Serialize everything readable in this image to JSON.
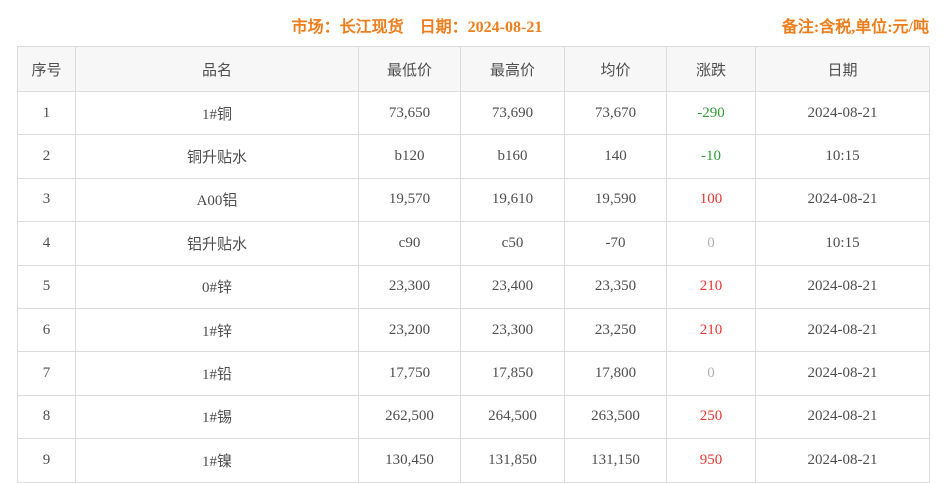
{
  "header": {
    "title": "市场：长江现货　日期：2024-08-21",
    "remark": "备注:含税,单位:元/吨"
  },
  "colors": {
    "accent_orange": "#ef7d1a",
    "rise_red": "#e83632",
    "fall_green": "#2e9b35",
    "zero_gray": "#b0b0b0",
    "header_bg": "#f7f7f7",
    "border_gray": "#dcdcdc",
    "text_gray": "#4d4d4d"
  },
  "table": {
    "columns": [
      "序号",
      "品名",
      "最低价",
      "最高价",
      "均价",
      "涨跌",
      "日期"
    ],
    "rows": [
      {
        "no": "1",
        "name": "1#铜",
        "low": "73,650",
        "high": "73,690",
        "avg": "73,670",
        "change": "-290",
        "change_type": "fall",
        "date": "2024-08-21"
      },
      {
        "no": "2",
        "name": "铜升贴水",
        "low": "b120",
        "high": "b160",
        "avg": "140",
        "change": "-10",
        "change_type": "fall",
        "date": "10:15"
      },
      {
        "no": "3",
        "name": "A00铝",
        "low": "19,570",
        "high": "19,610",
        "avg": "19,590",
        "change": "100",
        "change_type": "rise",
        "date": "2024-08-21"
      },
      {
        "no": "4",
        "name": "铝升贴水",
        "low": "c90",
        "high": "c50",
        "avg": "-70",
        "change": "0",
        "change_type": "zero",
        "date": "10:15"
      },
      {
        "no": "5",
        "name": "0#锌",
        "low": "23,300",
        "high": "23,400",
        "avg": "23,350",
        "change": "210",
        "change_type": "rise",
        "date": "2024-08-21"
      },
      {
        "no": "6",
        "name": "1#锌",
        "low": "23,200",
        "high": "23,300",
        "avg": "23,250",
        "change": "210",
        "change_type": "rise",
        "date": "2024-08-21"
      },
      {
        "no": "7",
        "name": "1#铅",
        "low": "17,750",
        "high": "17,850",
        "avg": "17,800",
        "change": "0",
        "change_type": "zero",
        "date": "2024-08-21"
      },
      {
        "no": "8",
        "name": "1#锡",
        "low": "262,500",
        "high": "264,500",
        "avg": "263,500",
        "change": "250",
        "change_type": "rise",
        "date": "2024-08-21"
      },
      {
        "no": "9",
        "name": "1#镍",
        "low": "130,450",
        "high": "131,850",
        "avg": "131,150",
        "change": "950",
        "change_type": "rise",
        "date": "2024-08-21"
      }
    ]
  }
}
